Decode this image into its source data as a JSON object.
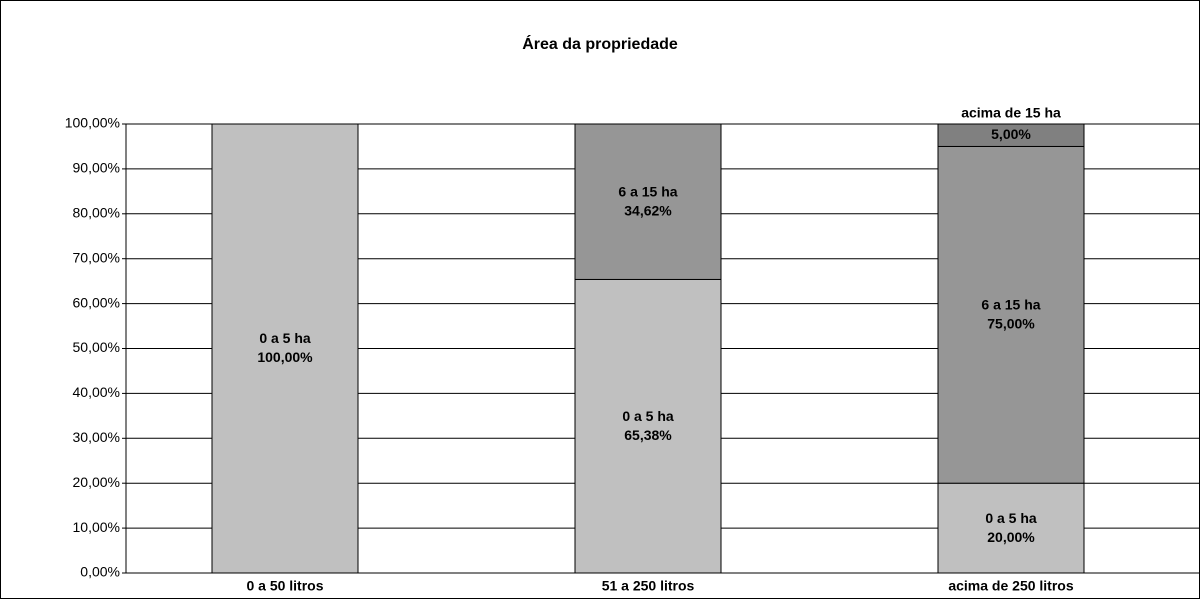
{
  "chart_data": {
    "type": "stacked_bar",
    "title": "Área da propriedade",
    "categories": [
      "0 a 50 litros",
      "51 a 250 litros",
      "acima de 250 litros"
    ],
    "series": [
      {
        "name": "0 a 5 ha",
        "color": "#c0c0c0",
        "values": [
          100,
          65.38,
          20
        ],
        "value_labels": [
          "100,00%",
          "65,38%",
          "20,00%"
        ]
      },
      {
        "name": "6 a 15 ha",
        "color": "#969696",
        "values": [
          null,
          34.62,
          75
        ],
        "value_labels": [
          null,
          "34,62%",
          "75,00%"
        ]
      },
      {
        "name": "acima de 15 ha",
        "color": "#808080",
        "values": [
          null,
          null,
          5
        ],
        "value_labels": [
          null,
          null,
          "5,00%"
        ]
      }
    ],
    "ylim": [
      0,
      100
    ],
    "yticks": [
      {
        "value": 0,
        "label": "0,00%"
      },
      {
        "value": 10,
        "label": "10,00%"
      },
      {
        "value": 20,
        "label": "20,00%"
      },
      {
        "value": 30,
        "label": "30,00%"
      },
      {
        "value": 40,
        "label": "40,00%"
      },
      {
        "value": 50,
        "label": "50,00%"
      },
      {
        "value": 60,
        "label": "60,00%"
      },
      {
        "value": 70,
        "label": "70,00%"
      },
      {
        "value": 80,
        "label": "80,00%"
      },
      {
        "value": 90,
        "label": "90,00%"
      },
      {
        "value": 100,
        "label": "100,00%"
      }
    ],
    "grid": true
  }
}
